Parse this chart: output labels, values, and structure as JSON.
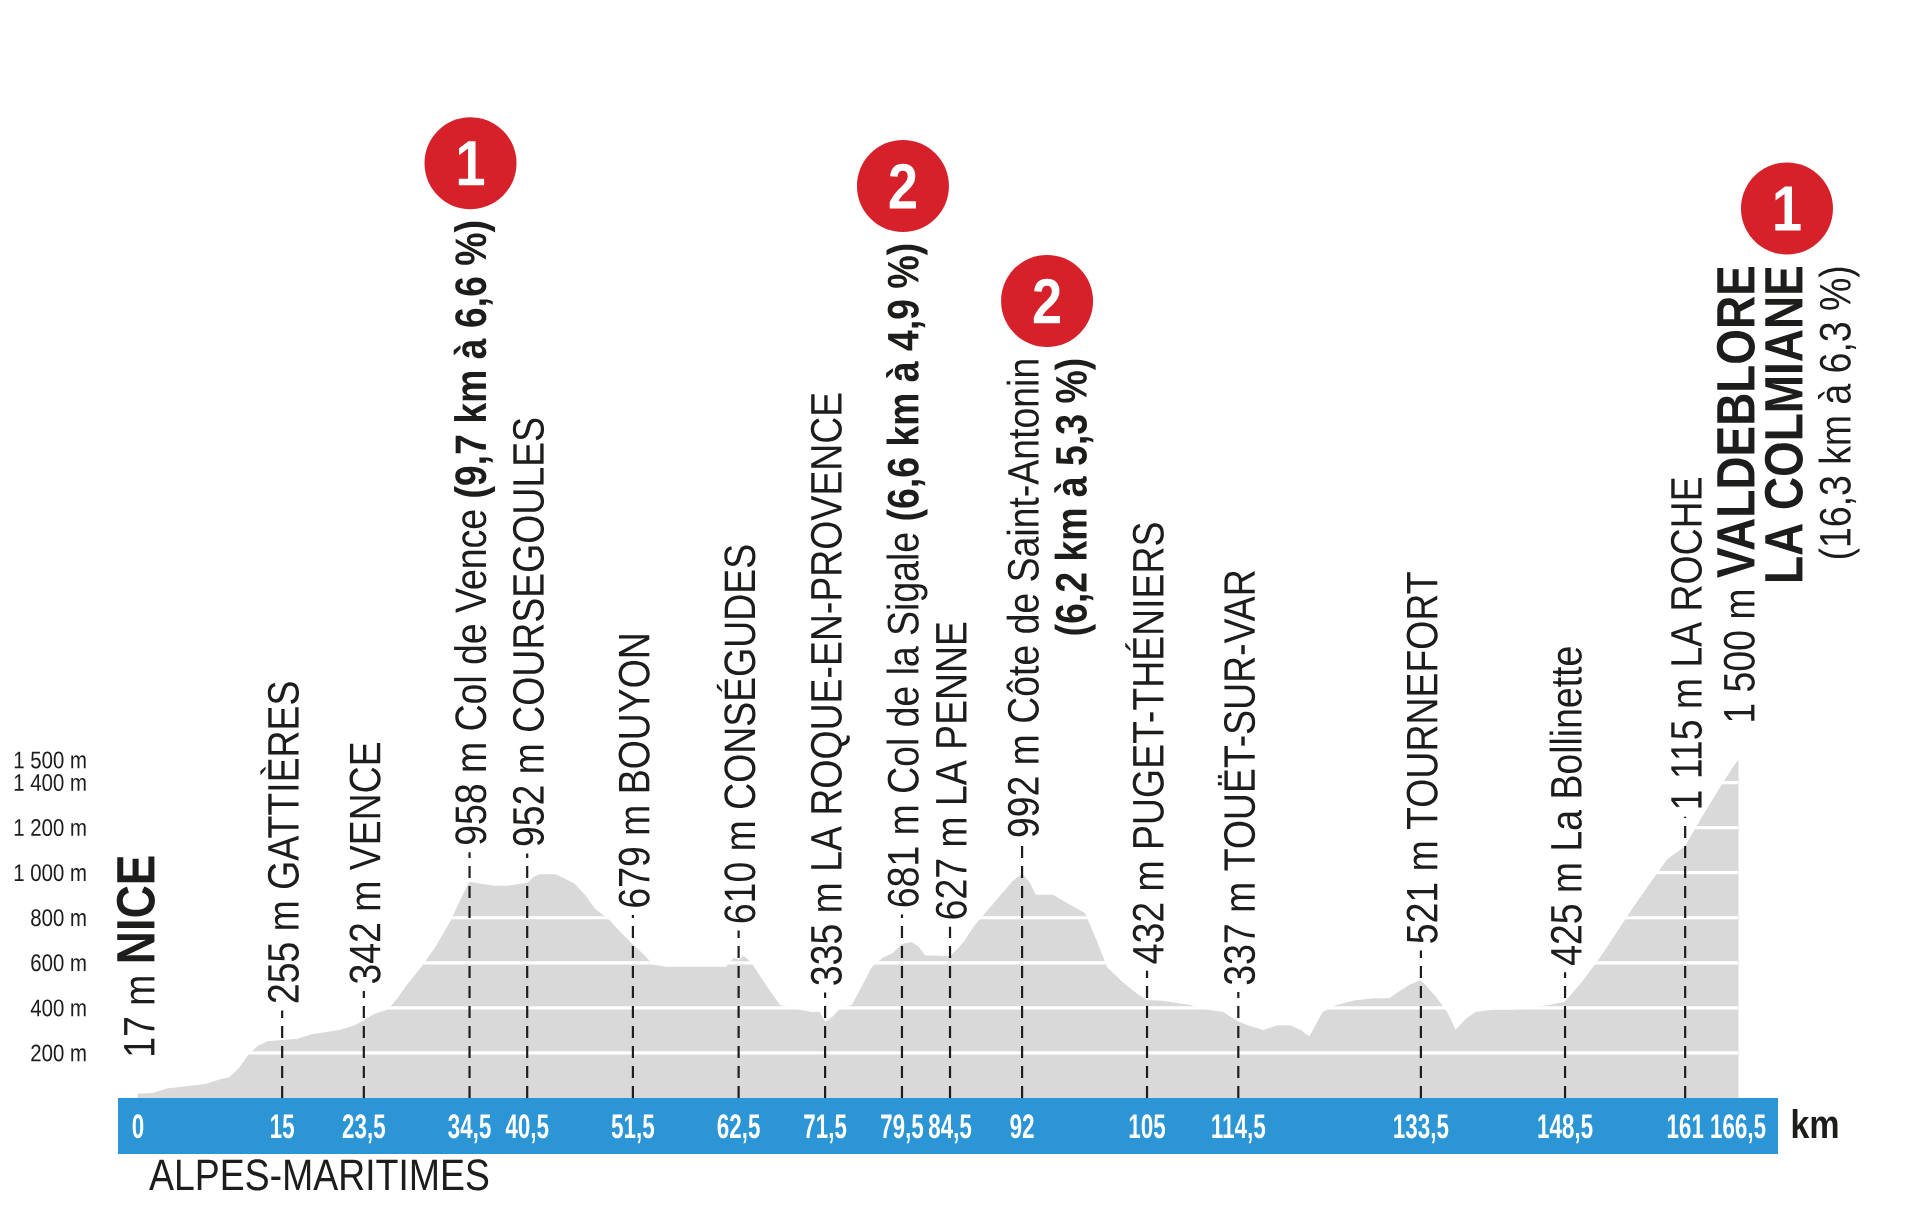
{
  "chart_data": {
    "type": "area",
    "color": "#d9d9d9",
    "x": [
      0,
      1.5,
      3,
      5,
      7,
      8.5,
      9.5,
      10.5,
      11.5,
      12.5,
      13.5,
      15,
      16.5,
      18,
      19.5,
      21,
      22.5,
      23.5,
      24.5,
      26,
      27,
      28,
      29.5,
      31,
      32.5,
      33.6,
      34.5,
      35.5,
      37,
      38.5,
      40,
      40.5,
      41.2,
      42.3,
      43,
      44,
      45.4,
      46.5,
      47.5,
      49,
      50.3,
      51.5,
      52.5,
      53.6,
      55,
      57,
      59,
      61.2,
      62,
      62.5,
      63,
      63.8,
      64.7,
      65.8,
      66.8,
      68,
      68.8,
      70,
      70.9,
      71.5,
      72.3,
      73.2,
      74.3,
      75.3,
      76.4,
      77.5,
      78.5,
      79.5,
      80.5,
      81.2,
      81.9,
      83,
      84.5,
      85.3,
      86.1,
      87,
      88.2,
      89.2,
      90.2,
      91,
      92,
      92.7,
      93.4,
      94.3,
      95.2,
      96.8,
      98.5,
      99.7,
      100.8,
      102.5,
      104,
      105,
      106.5,
      108,
      109.5,
      111.2,
      112.9,
      114.5,
      115.5,
      117.1,
      118.5,
      119.9,
      121,
      121.9,
      123.3,
      124.7,
      126.5,
      128.5,
      130.2,
      131.2,
      132.3,
      133.5,
      135,
      136.2,
      137.1,
      138.2,
      139.2,
      141,
      143.3,
      145,
      146.8,
      148.5,
      150.4,
      152.3,
      154,
      155.7,
      157.5,
      159.2,
      161,
      162.7,
      164.7,
      166.5
    ],
    "values": [
      17,
      20,
      40,
      50,
      60,
      80,
      90,
      130,
      190,
      230,
      250,
      255,
      260,
      280,
      290,
      300,
      320,
      342,
      370,
      390,
      440,
      500,
      580,
      670,
      780,
      880,
      958,
      950,
      940,
      940,
      950,
      952,
      980,
      1000,
      1000,
      980,
      950,
      900,
      840,
      790,
      730,
      679,
      640,
      590,
      580,
      580,
      580,
      580,
      620,
      610,
      630,
      600,
      540,
      470,
      410,
      400,
      390,
      380,
      380,
      335,
      360,
      400,
      410,
      490,
      580,
      620,
      640,
      681,
      690,
      670,
      630,
      630,
      627,
      660,
      700,
      760,
      820,
      870,
      920,
      960,
      992,
      960,
      900,
      900,
      900,
      860,
      820,
      700,
      580,
      510,
      460,
      432,
      430,
      420,
      410,
      390,
      380,
      337,
      320,
      300,
      320,
      320,
      300,
      270,
      380,
      410,
      430,
      440,
      440,
      470,
      500,
      521,
      450,
      380,
      300,
      350,
      380,
      390,
      390,
      400,
      410,
      425,
      520,
      630,
      740,
      850,
      960,
      1060,
      1115,
      1240,
      1380,
      1500
    ],
    "xlim": [
      0,
      166.5
    ],
    "ylim": [
      0,
      1500
    ],
    "xlabel": "km",
    "xticks": [
      0,
      15,
      {
        "value": 23.5,
        "label": "23,5"
      },
      {
        "value": 34.5,
        "label": "34,5"
      },
      {
        "value": 40.5,
        "label": "40,5"
      },
      {
        "value": 51.5,
        "label": "51,5"
      },
      {
        "value": 62.5,
        "label": "62,5"
      },
      {
        "value": 71.5,
        "label": "71,5"
      },
      {
        "value": 79.5,
        "label": "79,5"
      },
      {
        "value": 84.5,
        "label": "84,5"
      },
      92,
      105,
      {
        "value": 114.5,
        "label": "114,5"
      },
      {
        "value": 133.5,
        "label": "133,5"
      },
      {
        "value": 148.5,
        "label": "148,5"
      },
      161,
      {
        "value": 166.5,
        "label": "166,5"
      }
    ],
    "yticks": [
      {
        "value": 200,
        "label": "200 m"
      },
      {
        "value": 400,
        "label": "400 m"
      },
      {
        "value": 600,
        "label": "600 m"
      },
      {
        "value": 800,
        "label": "800 m"
      },
      {
        "value": 1000,
        "label": "1 000 m"
      },
      {
        "value": 1200,
        "label": "1 200 m"
      },
      {
        "value": 1400,
        "label": "1 400 m"
      },
      {
        "value": 1500,
        "label": "1 500 m"
      }
    ],
    "grid": true,
    "annotations": [
      "ALPES-MARITIMES",
      {
        "text": "17 m **NICE**",
        "x": 0,
        "y": 17
      },
      {
        "text": "255 m GATTIÈRES",
        "x": 15,
        "y": 255
      },
      {
        "text": "342 m VENCE",
        "x": 23.5,
        "y": 342
      },
      {
        "text": "958 m Col de Vence **(9,7 km à 6,6 %)**",
        "x": 34.5,
        "y": 958
      },
      "1",
      {
        "text": "952 m COURSEGOULES",
        "x": 40.5,
        "y": 952
      },
      {
        "text": "679 m BOUYON",
        "x": 51.5,
        "y": 679
      },
      {
        "text": "610 m CONSÉGUDES",
        "x": 62.5,
        "y": 610
      },
      {
        "text": "335 m LA ROQUE-EN-PROVENCE",
        "x": 71.5,
        "y": 335
      },
      {
        "text": "681 m Col de la Sigale **(6,6 km à 4,9 %)**",
        "x": 79.5,
        "y": 681
      },
      "2",
      {
        "text": "627 m LA PENNE",
        "x": 84.5,
        "y": 627
      },
      {
        "text": "992 m Côte de Saint-Antonin\n**(6,2 km à 5,3 %)**",
        "x": 92,
        "y": 992
      },
      "2",
      {
        "text": "432 m PUGET-THÉNIERS",
        "x": 105,
        "y": 432
      },
      {
        "text": "337 m TOUËT-SUR-VAR",
        "x": 114.5,
        "y": 337
      },
      {
        "text": "521 m TOURNEFORT",
        "x": 133.5,
        "y": 521
      },
      {
        "text": "425 m La Bollinette",
        "x": 148.5,
        "y": 425
      },
      {
        "text": "1 115 m LA ROCHE",
        "x": 161,
        "y": 1115
      },
      {
        "text": "1 500 m **VALDEBLORE**\n**LA COLMIANE**\n(16,3 km à 6,3 %)",
        "x": 166.5,
        "y": 1500
      },
      "1"
    ]
  }
}
